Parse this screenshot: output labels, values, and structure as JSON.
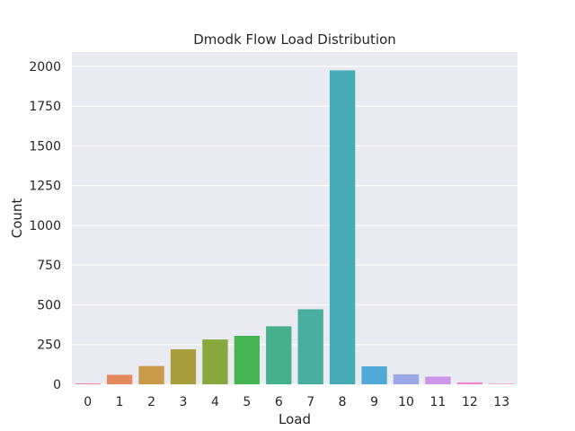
{
  "chart_data": {
    "type": "bar",
    "title": "Dmodk Flow Load Distribution",
    "xlabel": "Load",
    "ylabel": "Count",
    "categories": [
      "0",
      "1",
      "2",
      "3",
      "4",
      "5",
      "6",
      "7",
      "8",
      "9",
      "10",
      "11",
      "12",
      "13"
    ],
    "values": [
      5,
      60,
      115,
      220,
      282,
      305,
      365,
      472,
      1975,
      113,
      63,
      48,
      12,
      3
    ],
    "ylim": [
      0,
      2090
    ],
    "yticks": [
      0,
      250,
      500,
      750,
      1000,
      1250,
      1500,
      1750,
      2000
    ],
    "grid": true,
    "colors": [
      "#e8828e",
      "#e58a5f",
      "#c99a49",
      "#a99d3b",
      "#86a83c",
      "#45b553",
      "#47b08c",
      "#49ad9f",
      "#46abb6",
      "#52a9d8",
      "#9ca7e8",
      "#cc96e9",
      "#ec86c9",
      "#f082b0"
    ],
    "background": "#eaeaf2",
    "grid_color": "#ffffff"
  }
}
